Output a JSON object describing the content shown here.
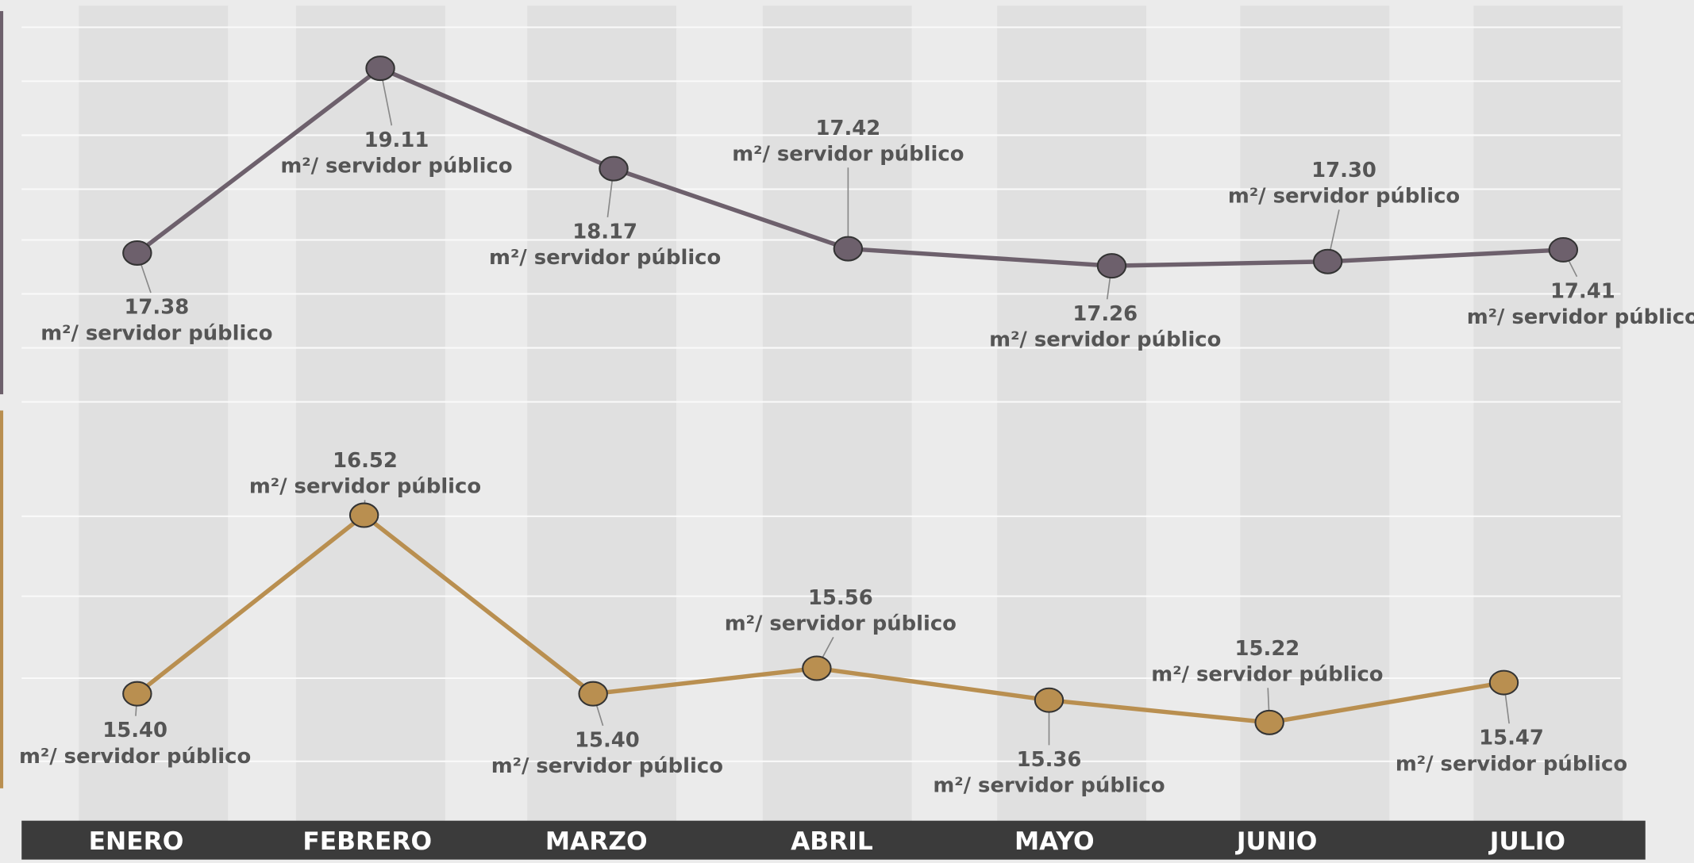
{
  "chart_data": {
    "type": "line",
    "categories": [
      "ENERO",
      "FEBRERO",
      "MARZO",
      "ABRIL",
      "MAYO",
      "JUNIO",
      "JULIO"
    ],
    "unit_label": "m²/ servidor público",
    "series": [
      {
        "color": "#6d606c",
        "values": [
          17.38,
          19.11,
          18.17,
          17.42,
          17.26,
          17.3,
          17.41
        ],
        "value_labels": [
          "17.38",
          "19.11",
          "18.17",
          "17.42",
          "17.26",
          "17.30",
          "17.41"
        ]
      },
      {
        "color": "#b98f50",
        "values": [
          15.4,
          16.52,
          15.4,
          15.56,
          15.36,
          15.22,
          15.47
        ],
        "value_labels": [
          "15.40",
          "16.52",
          "15.40",
          "15.56",
          "15.36",
          "15.22",
          "15.47"
        ]
      }
    ]
  }
}
